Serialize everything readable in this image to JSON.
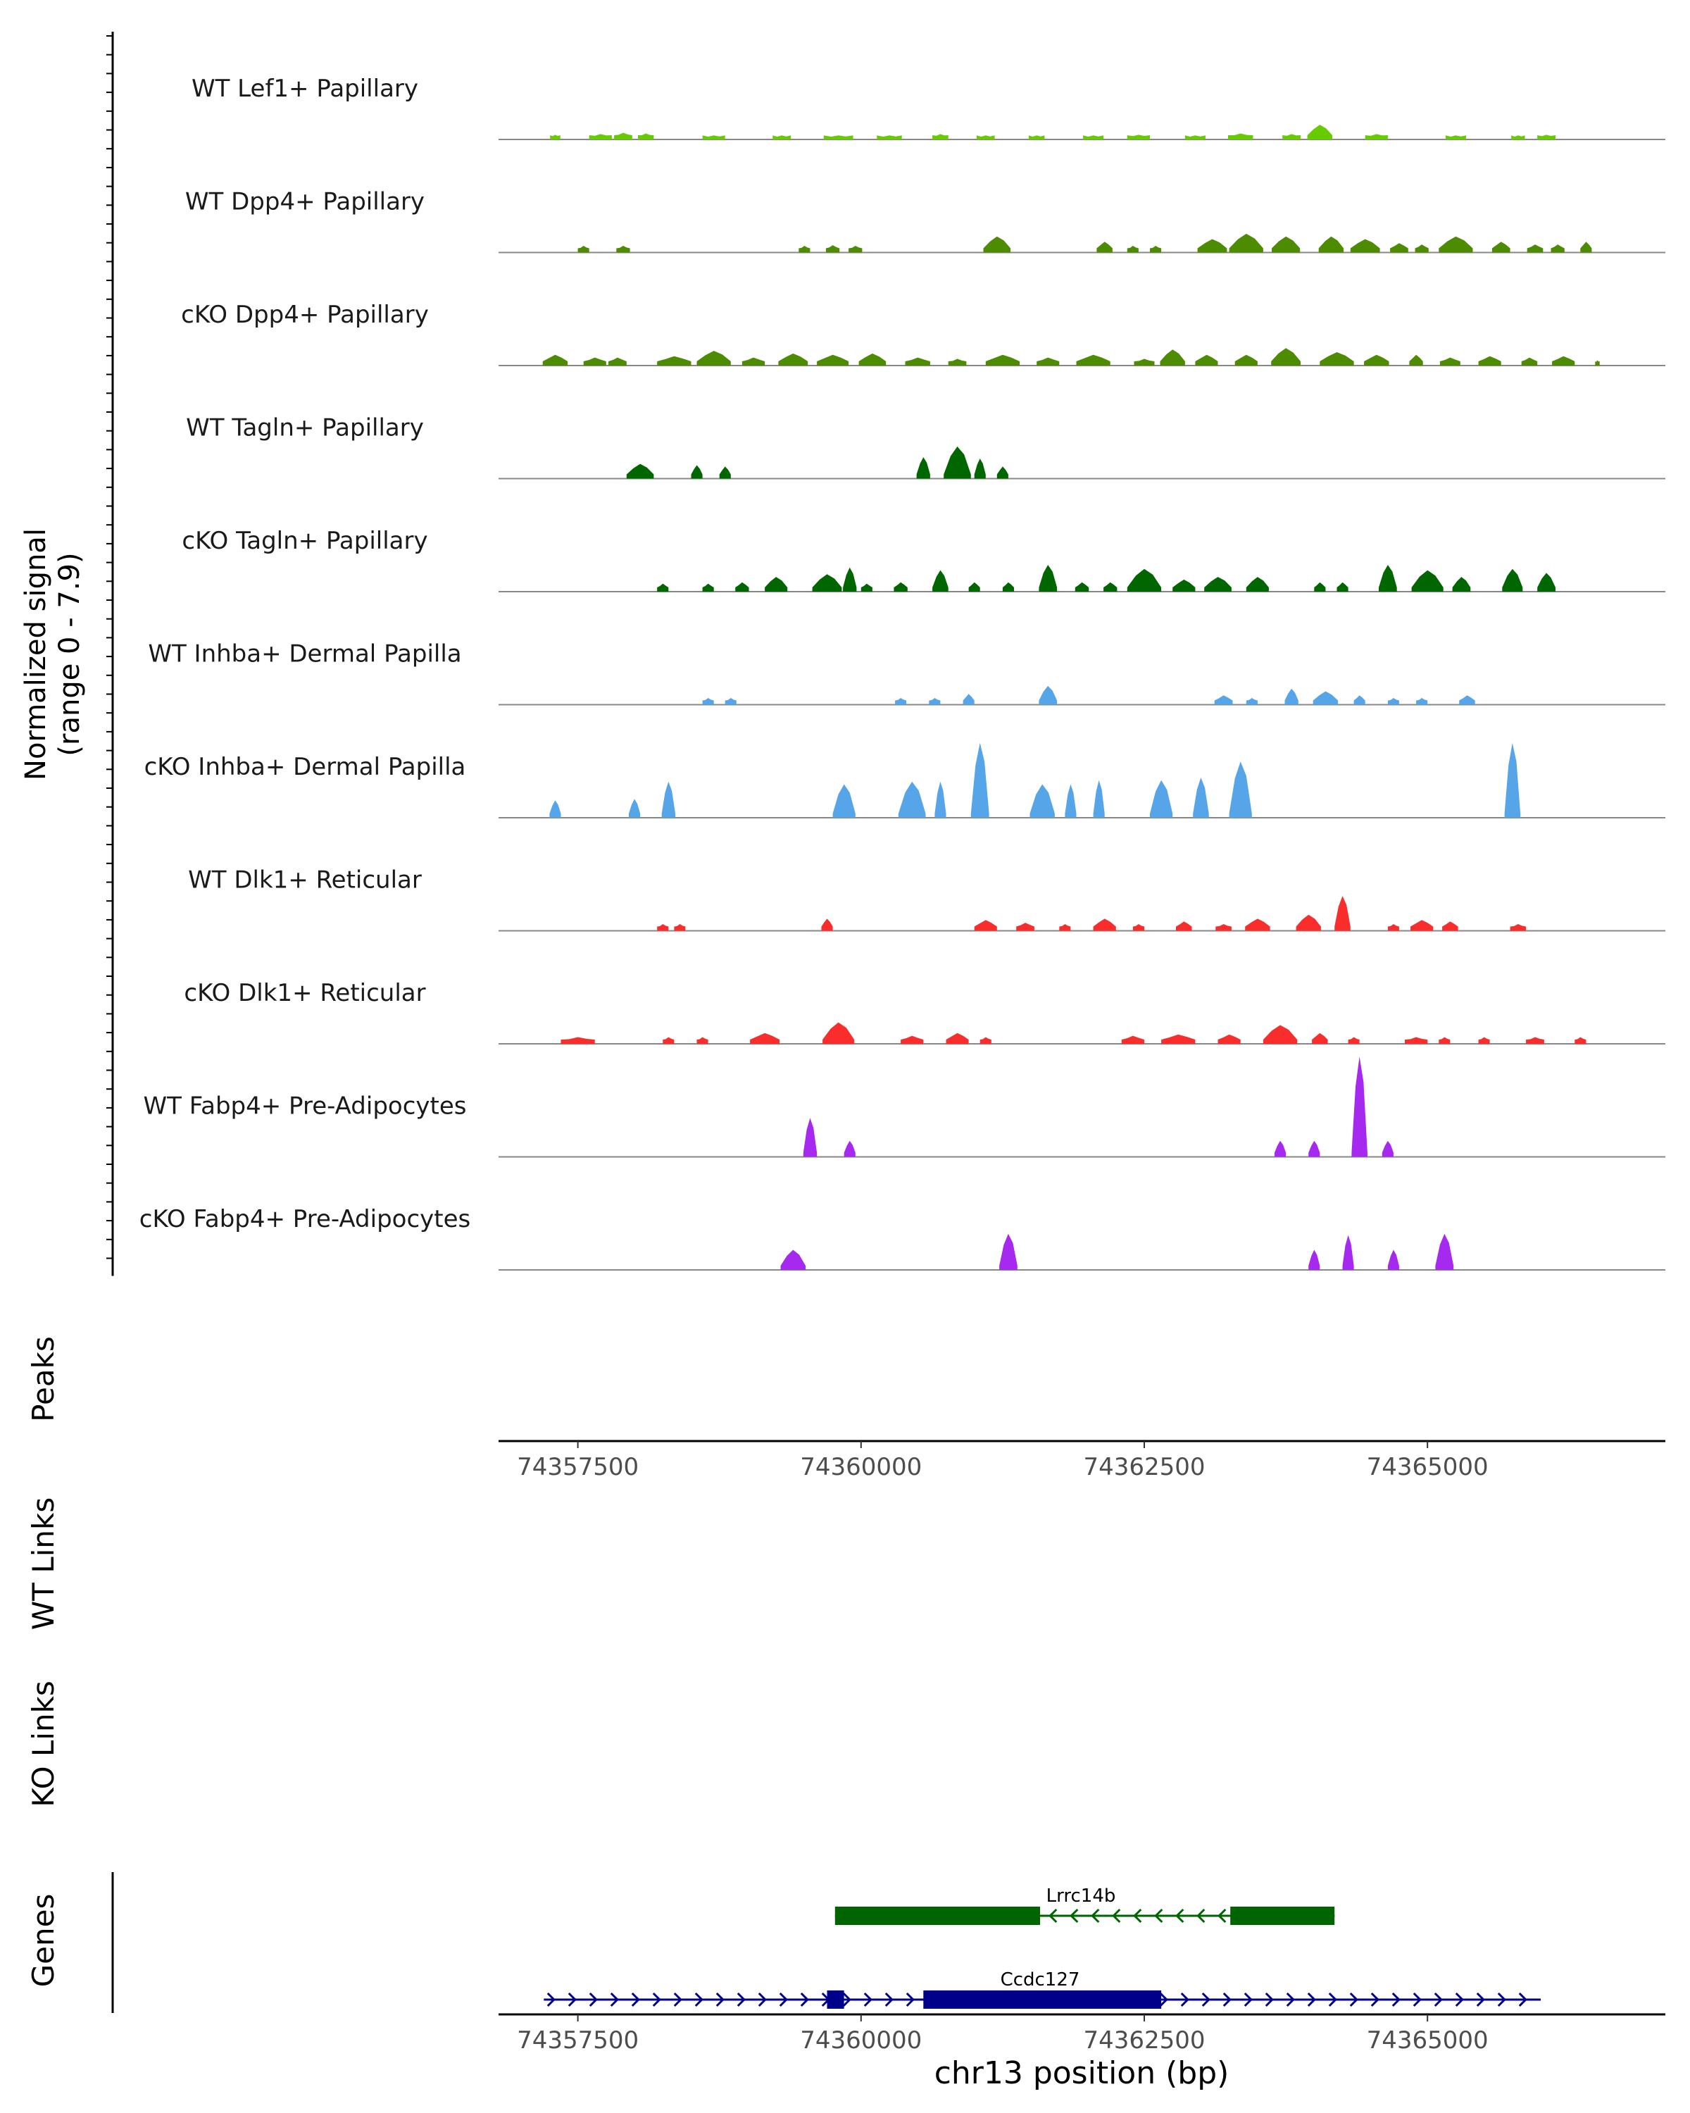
{
  "chart_data": {
    "type": "area",
    "title": "",
    "chromosome": "chr13",
    "xlabel": "chr13 position (bp)",
    "xlim": [
      74356800,
      74367100
    ],
    "x_ticks": [
      74357500,
      74360000,
      74362500,
      74365000
    ],
    "x_tick_labels": [
      "74357500",
      "74360000",
      "74362500",
      "74365000"
    ],
    "coverage_ylabel": "Normalized signal",
    "coverage_yrange": "(range 0 - 7.9)",
    "ylim": [
      0,
      7.9
    ],
    "track_labels": {
      "peaks": "Peaks",
      "wt_links": "WT Links",
      "ko_links": "KO Links",
      "genes": "Genes"
    },
    "series": [
      {
        "name": "WT Lef1+ Papillary",
        "color": "#66CC00",
        "peaks": [
          [
            74357300,
            90,
            0.35
          ],
          [
            74357700,
            200,
            0.4
          ],
          [
            74357900,
            160,
            0.5
          ],
          [
            74358100,
            140,
            0.45
          ],
          [
            74358700,
            200,
            0.3
          ],
          [
            74359300,
            160,
            0.3
          ],
          [
            74359800,
            260,
            0.3
          ],
          [
            74360250,
            220,
            0.3
          ],
          [
            74360700,
            140,
            0.4
          ],
          [
            74361100,
            160,
            0.3
          ],
          [
            74361550,
            140,
            0.3
          ],
          [
            74362050,
            180,
            0.3
          ],
          [
            74362450,
            200,
            0.35
          ],
          [
            74362950,
            180,
            0.3
          ],
          [
            74363350,
            220,
            0.45
          ],
          [
            74363800,
            160,
            0.4
          ],
          [
            74364050,
            220,
            1.1
          ],
          [
            74364550,
            200,
            0.4
          ],
          [
            74365250,
            180,
            0.3
          ],
          [
            74365800,
            120,
            0.3
          ],
          [
            74366050,
            160,
            0.35
          ]
        ]
      },
      {
        "name": "WT Dpp4+ Papillary",
        "color": "#4D8C00",
        "peaks": [
          [
            74357550,
            100,
            0.5
          ],
          [
            74357900,
            120,
            0.5
          ],
          [
            74359500,
            100,
            0.5
          ],
          [
            74359750,
            120,
            0.55
          ],
          [
            74359950,
            120,
            0.5
          ],
          [
            74361200,
            240,
            1.2
          ],
          [
            74362150,
            140,
            0.8
          ],
          [
            74362400,
            100,
            0.5
          ],
          [
            74362600,
            100,
            0.5
          ],
          [
            74363100,
            260,
            1.0
          ],
          [
            74363400,
            300,
            1.4
          ],
          [
            74363750,
            250,
            1.2
          ],
          [
            74364150,
            220,
            1.2
          ],
          [
            74364450,
            260,
            1.0
          ],
          [
            74364750,
            160,
            0.7
          ],
          [
            74364950,
            120,
            0.6
          ],
          [
            74365250,
            300,
            1.2
          ],
          [
            74365650,
            160,
            0.8
          ],
          [
            74365950,
            140,
            0.6
          ],
          [
            74366150,
            120,
            0.6
          ],
          [
            74366400,
            100,
            0.8
          ]
        ]
      },
      {
        "name": "cKO Dpp4+ Papillary",
        "color": "#4D8C00",
        "peaks": [
          [
            74357300,
            220,
            0.8
          ],
          [
            74357650,
            200,
            0.6
          ],
          [
            74357850,
            160,
            0.6
          ],
          [
            74358350,
            300,
            0.7
          ],
          [
            74358700,
            300,
            1.1
          ],
          [
            74359050,
            200,
            0.6
          ],
          [
            74359400,
            260,
            0.9
          ],
          [
            74359750,
            280,
            0.8
          ],
          [
            74360100,
            240,
            0.9
          ],
          [
            74360500,
            220,
            0.6
          ],
          [
            74360850,
            160,
            0.5
          ],
          [
            74361250,
            300,
            0.8
          ],
          [
            74361650,
            200,
            0.6
          ],
          [
            74362050,
            300,
            0.8
          ],
          [
            74362500,
            180,
            0.5
          ],
          [
            74362750,
            220,
            1.2
          ],
          [
            74363050,
            200,
            0.8
          ],
          [
            74363400,
            200,
            0.8
          ],
          [
            74363750,
            260,
            1.3
          ],
          [
            74364200,
            300,
            1.0
          ],
          [
            74364550,
            220,
            0.8
          ],
          [
            74364900,
            120,
            0.8
          ],
          [
            74365200,
            180,
            0.6
          ],
          [
            74365550,
            200,
            0.7
          ],
          [
            74365900,
            140,
            0.6
          ],
          [
            74366200,
            200,
            0.7
          ],
          [
            74366500,
            40,
            0.4
          ]
        ]
      },
      {
        "name": "WT Tagln+ Papillary",
        "color": "#006600",
        "peaks": [
          [
            74358050,
            240,
            1.1
          ],
          [
            74358550,
            100,
            1.0
          ],
          [
            74358800,
            100,
            0.9
          ],
          [
            74360550,
            120,
            1.6
          ],
          [
            74360850,
            240,
            2.4
          ],
          [
            74361050,
            100,
            1.5
          ],
          [
            74361250,
            100,
            0.9
          ]
        ]
      },
      {
        "name": "cKO Tagln+ Papillary",
        "color": "#006600",
        "peaks": [
          [
            74358250,
            100,
            0.6
          ],
          [
            74358650,
            100,
            0.6
          ],
          [
            74358950,
            120,
            0.7
          ],
          [
            74359250,
            200,
            1.1
          ],
          [
            74359700,
            260,
            1.3
          ],
          [
            74359900,
            120,
            1.8
          ],
          [
            74360050,
            100,
            0.6
          ],
          [
            74360350,
            120,
            0.7
          ],
          [
            74360700,
            140,
            1.6
          ],
          [
            74361000,
            100,
            0.7
          ],
          [
            74361300,
            100,
            0.7
          ],
          [
            74361650,
            160,
            2.0
          ],
          [
            74361950,
            120,
            0.7
          ],
          [
            74362200,
            120,
            0.7
          ],
          [
            74362500,
            300,
            1.7
          ],
          [
            74362850,
            200,
            0.9
          ],
          [
            74363150,
            240,
            1.1
          ],
          [
            74363500,
            200,
            1.1
          ],
          [
            74364050,
            100,
            0.7
          ],
          [
            74364250,
            100,
            0.7
          ],
          [
            74364650,
            160,
            2.0
          ],
          [
            74365000,
            280,
            1.6
          ],
          [
            74365300,
            160,
            1.1
          ],
          [
            74365750,
            180,
            1.7
          ],
          [
            74366050,
            160,
            1.4
          ]
        ]
      },
      {
        "name": "WT Inhba+ Dermal Papilla",
        "color": "#56A5E9",
        "peaks": [
          [
            74358650,
            100,
            0.5
          ],
          [
            74358850,
            100,
            0.5
          ],
          [
            74360350,
            100,
            0.5
          ],
          [
            74360650,
            100,
            0.5
          ],
          [
            74360950,
            100,
            0.8
          ],
          [
            74361650,
            160,
            1.4
          ],
          [
            74363200,
            160,
            0.7
          ],
          [
            74363450,
            100,
            0.5
          ],
          [
            74363800,
            120,
            1.2
          ],
          [
            74364100,
            220,
            1.0
          ],
          [
            74364400,
            100,
            0.7
          ],
          [
            74364700,
            100,
            0.5
          ],
          [
            74364950,
            100,
            0.5
          ],
          [
            74365350,
            140,
            0.7
          ]
        ]
      },
      {
        "name": "cKO Inhba+ Dermal Papilla",
        "color": "#56A5E9",
        "peaks": [
          [
            74357300,
            100,
            1.3
          ],
          [
            74358000,
            100,
            1.4
          ],
          [
            74358300,
            120,
            2.7
          ],
          [
            74359850,
            200,
            2.5
          ],
          [
            74360450,
            240,
            2.7
          ],
          [
            74360700,
            100,
            2.7
          ],
          [
            74361050,
            160,
            5.6
          ],
          [
            74361600,
            220,
            2.5
          ],
          [
            74361850,
            100,
            2.5
          ],
          [
            74362100,
            100,
            2.8
          ],
          [
            74362650,
            200,
            2.8
          ],
          [
            74363000,
            140,
            3.0
          ],
          [
            74363350,
            200,
            4.2
          ],
          [
            74365750,
            140,
            5.6
          ]
        ]
      },
      {
        "name": "WT Dlk1+ Reticular",
        "color": "#FA2D2D",
        "peaks": [
          [
            74358250,
            100,
            0.5
          ],
          [
            74358400,
            100,
            0.5
          ],
          [
            74359700,
            100,
            0.9
          ],
          [
            74361100,
            200,
            0.8
          ],
          [
            74361450,
            160,
            0.6
          ],
          [
            74361800,
            100,
            0.5
          ],
          [
            74362150,
            200,
            0.9
          ],
          [
            74362450,
            100,
            0.5
          ],
          [
            74362850,
            140,
            0.7
          ],
          [
            74363200,
            140,
            0.5
          ],
          [
            74363500,
            220,
            0.9
          ],
          [
            74363950,
            220,
            1.2
          ],
          [
            74364250,
            140,
            2.6
          ],
          [
            74364700,
            100,
            0.5
          ],
          [
            74364950,
            200,
            0.8
          ],
          [
            74365200,
            140,
            0.7
          ],
          [
            74365800,
            140,
            0.5
          ]
        ]
      },
      {
        "name": "cKO Dlk1+ Reticular",
        "color": "#FA2D2D",
        "peaks": [
          [
            74357500,
            300,
            0.5
          ],
          [
            74358300,
            100,
            0.5
          ],
          [
            74358600,
            100,
            0.5
          ],
          [
            74359150,
            260,
            0.8
          ],
          [
            74359800,
            280,
            1.6
          ],
          [
            74360450,
            200,
            0.6
          ],
          [
            74360850,
            200,
            0.8
          ],
          [
            74361100,
            100,
            0.5
          ],
          [
            74362400,
            200,
            0.6
          ],
          [
            74362800,
            300,
            0.7
          ],
          [
            74363250,
            200,
            0.7
          ],
          [
            74363700,
            300,
            1.4
          ],
          [
            74364050,
            140,
            0.8
          ],
          [
            74364350,
            100,
            0.5
          ],
          [
            74364900,
            200,
            0.5
          ],
          [
            74365150,
            100,
            0.5
          ],
          [
            74365500,
            100,
            0.5
          ],
          [
            74365950,
            160,
            0.5
          ],
          [
            74366350,
            100,
            0.5
          ]
        ]
      },
      {
        "name": "WT Fabp4+ Pre-Adipocytes",
        "color": "#A629F0",
        "peaks": [
          [
            74359550,
            120,
            2.9
          ],
          [
            74359900,
            100,
            1.2
          ],
          [
            74363700,
            100,
            1.2
          ],
          [
            74364000,
            100,
            1.2
          ],
          [
            74364400,
            140,
            7.5
          ],
          [
            74364650,
            100,
            1.2
          ]
        ]
      },
      {
        "name": "cKO Fabp4+ Pre-Adipocytes",
        "color": "#A629F0",
        "peaks": [
          [
            74359400,
            220,
            1.5
          ],
          [
            74361300,
            160,
            2.7
          ],
          [
            74364000,
            100,
            1.5
          ],
          [
            74364300,
            100,
            2.6
          ],
          [
            74364700,
            100,
            1.5
          ],
          [
            74365150,
            160,
            2.7
          ]
        ]
      }
    ],
    "genes": [
      {
        "name": "Lrrc14b",
        "strand": "-",
        "color": "#006400",
        "start": 74359770,
        "end": 74364180,
        "exons": [
          [
            74359770,
            74361580
          ],
          [
            74363260,
            74364180
          ]
        ]
      },
      {
        "name": "Ccdc127",
        "strand": "+",
        "color": "#00008B",
        "start": 74357200,
        "end": 74366000,
        "exons": [
          [
            74359700,
            74359850
          ],
          [
            74360550,
            74362650
          ]
        ]
      }
    ]
  }
}
